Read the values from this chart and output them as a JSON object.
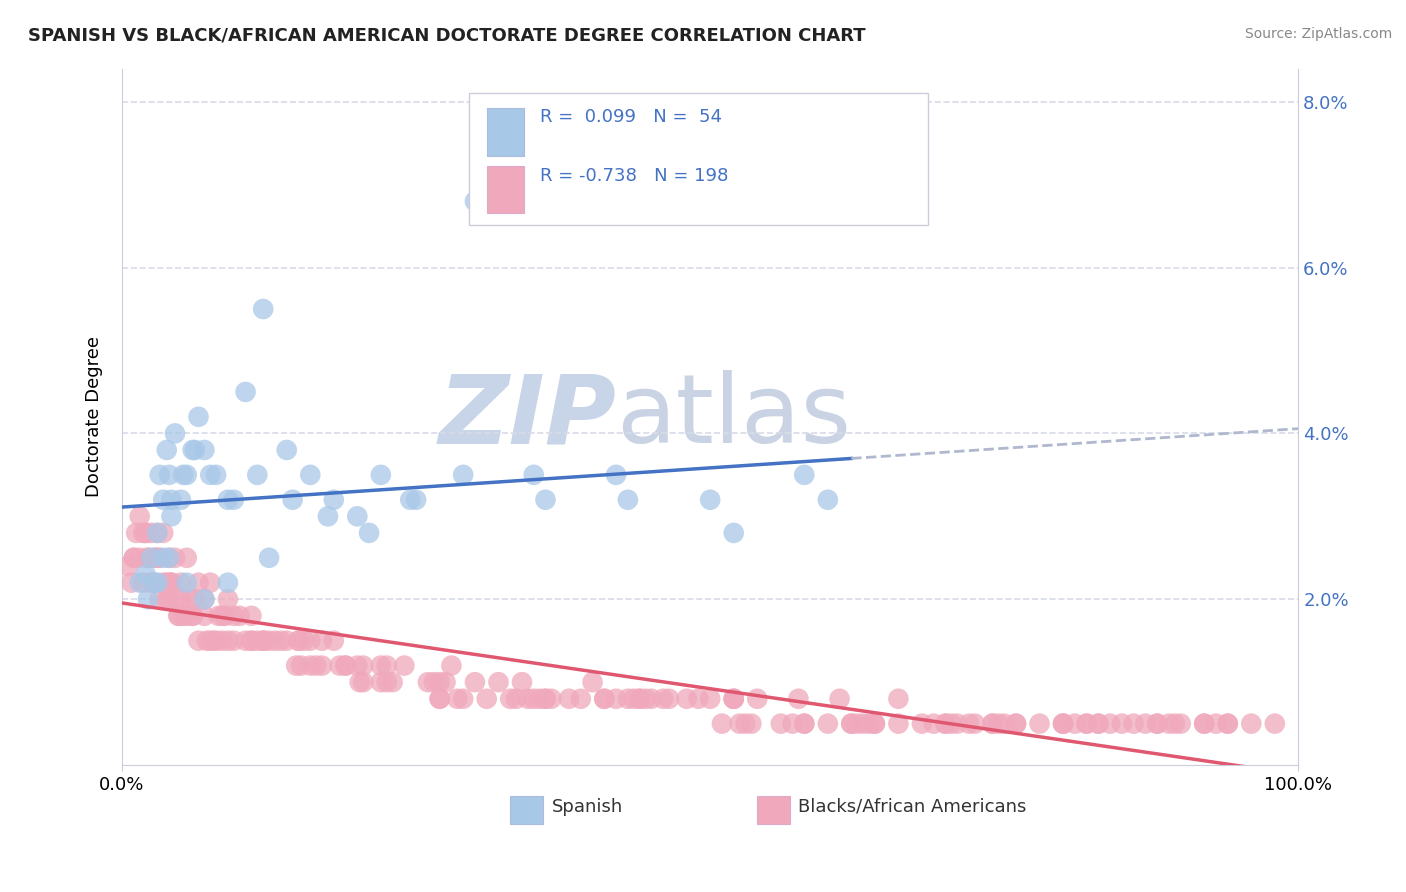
{
  "title": "SPANISH VS BLACK/AFRICAN AMERICAN DOCTORATE DEGREE CORRELATION CHART",
  "source_text": "Source: ZipAtlas.com",
  "ylabel": "Doctorate Degree",
  "xlim": [
    0,
    100
  ],
  "ylim": [
    0,
    8.4
  ],
  "blue_color": "#A8C8E8",
  "pink_color": "#F0A8BC",
  "blue_line_color": "#4472C4",
  "pink_line_color": "#E05870",
  "dashed_line_color": "#B0B8D0",
  "grid_color": "#D8DCE8",
  "watermark_zip": "ZIP",
  "watermark_atlas": "atlas",
  "watermark_color": "#C8D4E8",
  "background_color": "#FFFFFF",
  "legend_text_color": "#4472C4",
  "ytick_color": "#4472C4",
  "blue_solid_end": 62,
  "blue_scatter_x": [
    2.0,
    2.5,
    3.0,
    3.2,
    3.5,
    3.8,
    4.0,
    4.2,
    4.5,
    5.0,
    5.5,
    6.0,
    6.5,
    7.0,
    8.0,
    9.0,
    10.5,
    12.0,
    14.0,
    16.0,
    18.0,
    20.0,
    22.0,
    25.0,
    30.0,
    36.0,
    42.0,
    50.0,
    58.0,
    2.8,
    3.5,
    4.2,
    5.2,
    6.2,
    7.5,
    9.5,
    11.5,
    14.5,
    17.5,
    21.0,
    24.5,
    29.0,
    35.0,
    43.0,
    52.0,
    60.0,
    1.5,
    2.2,
    3.0,
    4.0,
    5.5,
    7.0,
    9.0,
    12.5
  ],
  "blue_scatter_y": [
    2.3,
    2.5,
    2.8,
    3.5,
    3.2,
    3.8,
    3.5,
    3.2,
    4.0,
    3.2,
    3.5,
    3.8,
    4.2,
    3.8,
    3.5,
    3.2,
    4.5,
    5.5,
    3.8,
    3.5,
    3.2,
    3.0,
    3.5,
    3.2,
    6.8,
    3.2,
    3.5,
    3.2,
    3.5,
    2.2,
    2.5,
    3.0,
    3.5,
    3.8,
    3.5,
    3.2,
    3.5,
    3.2,
    3.0,
    2.8,
    3.2,
    3.5,
    3.5,
    3.2,
    2.8,
    3.2,
    2.2,
    2.0,
    2.2,
    2.5,
    2.2,
    2.0,
    2.2,
    2.5
  ],
  "pink_scatter_x": [
    0.5,
    0.8,
    1.0,
    1.2,
    1.5,
    1.8,
    2.0,
    2.2,
    2.5,
    2.8,
    3.0,
    3.2,
    3.5,
    3.8,
    4.0,
    4.2,
    4.5,
    4.8,
    5.0,
    5.5,
    6.0,
    6.5,
    7.0,
    7.5,
    8.0,
    8.5,
    9.0,
    9.5,
    10.0,
    11.0,
    12.0,
    13.0,
    14.0,
    15.0,
    16.0,
    17.0,
    18.0,
    19.0,
    20.0,
    22.0,
    24.0,
    26.0,
    28.0,
    30.0,
    32.0,
    34.0,
    36.0,
    38.0,
    40.0,
    42.0,
    44.0,
    46.0,
    48.0,
    50.0,
    52.0,
    54.0,
    56.0,
    58.0,
    60.0,
    62.0,
    64.0,
    66.0,
    68.0,
    70.0,
    72.0,
    74.0,
    76.0,
    78.0,
    80.0,
    82.0,
    84.0,
    86.0,
    88.0,
    90.0,
    92.0,
    94.0,
    96.0,
    98.0,
    1.5,
    2.5,
    3.5,
    4.5,
    5.5,
    6.5,
    7.5,
    9.0,
    11.0,
    13.5,
    16.0,
    19.0,
    23.0,
    27.0,
    31.0,
    36.0,
    41.0,
    46.5,
    52.0,
    58.0,
    64.0,
    70.0,
    76.0,
    82.0,
    88.0,
    94.0,
    1.0,
    2.0,
    3.0,
    4.0,
    5.0,
    7.0,
    9.5,
    12.0,
    15.0,
    18.5,
    22.5,
    27.5,
    33.0,
    39.0,
    45.0,
    51.0,
    57.0,
    63.0,
    69.0,
    75.0,
    81.0,
    87.0,
    93.0,
    2.2,
    3.8,
    5.8,
    8.2,
    11.5,
    15.5,
    20.5,
    26.5,
    33.5,
    41.0,
    49.0,
    57.5,
    66.0,
    74.5,
    83.0,
    92.0,
    1.8,
    2.8,
    4.2,
    6.2,
    8.8,
    12.5,
    17.0,
    22.5,
    29.0,
    36.5,
    44.5,
    53.0,
    62.0,
    71.0,
    80.0,
    89.0,
    2.5,
    4.0,
    6.0,
    8.5,
    12.0,
    16.5,
    22.0,
    28.5,
    35.5,
    43.5,
    52.0,
    61.0,
    70.5,
    80.0,
    89.5,
    3.2,
    5.2,
    7.8,
    11.0,
    15.2,
    20.5,
    27.0,
    34.5,
    43.0,
    52.5,
    62.5,
    72.5,
    83.0,
    4.8,
    7.2,
    10.5,
    14.8,
    20.2,
    27.0,
    35.0,
    44.0,
    53.5,
    63.5,
    74.0,
    85.0
  ],
  "pink_scatter_y": [
    2.4,
    2.2,
    2.5,
    2.8,
    2.5,
    2.2,
    2.8,
    2.5,
    2.2,
    2.5,
    2.8,
    2.5,
    2.2,
    2.0,
    2.5,
    2.2,
    2.0,
    1.8,
    2.0,
    1.8,
    1.8,
    1.5,
    1.8,
    1.5,
    1.5,
    1.8,
    1.5,
    1.5,
    1.8,
    1.5,
    1.5,
    1.5,
    1.5,
    1.5,
    1.2,
    1.5,
    1.5,
    1.2,
    1.2,
    1.2,
    1.2,
    1.0,
    1.2,
    1.0,
    1.0,
    1.0,
    0.8,
    0.8,
    1.0,
    0.8,
    0.8,
    0.8,
    0.8,
    0.8,
    0.8,
    0.8,
    0.5,
    0.5,
    0.5,
    0.5,
    0.5,
    0.5,
    0.5,
    0.5,
    0.5,
    0.5,
    0.5,
    0.5,
    0.5,
    0.5,
    0.5,
    0.5,
    0.5,
    0.5,
    0.5,
    0.5,
    0.5,
    0.5,
    3.0,
    2.8,
    2.8,
    2.5,
    2.5,
    2.2,
    2.2,
    2.0,
    1.8,
    1.5,
    1.5,
    1.2,
    1.0,
    1.0,
    0.8,
    0.8,
    0.8,
    0.8,
    0.8,
    0.5,
    0.5,
    0.5,
    0.5,
    0.5,
    0.5,
    0.5,
    2.5,
    2.8,
    2.5,
    2.2,
    2.2,
    2.0,
    1.8,
    1.5,
    1.5,
    1.2,
    1.2,
    1.0,
    0.8,
    0.8,
    0.8,
    0.5,
    0.5,
    0.5,
    0.5,
    0.5,
    0.5,
    0.5,
    0.5,
    2.5,
    2.2,
    2.0,
    1.8,
    1.5,
    1.5,
    1.2,
    1.0,
    0.8,
    0.8,
    0.8,
    0.8,
    0.8,
    0.5,
    0.5,
    0.5,
    2.8,
    2.5,
    2.2,
    2.0,
    1.8,
    1.5,
    1.2,
    1.0,
    0.8,
    0.8,
    0.8,
    0.5,
    0.5,
    0.5,
    0.5,
    0.5,
    2.2,
    2.0,
    1.8,
    1.5,
    1.5,
    1.2,
    1.0,
    0.8,
    0.8,
    0.8,
    0.8,
    0.8,
    0.5,
    0.5,
    0.5,
    2.0,
    1.8,
    1.5,
    1.5,
    1.2,
    1.0,
    0.8,
    0.8,
    0.8,
    0.5,
    0.5,
    0.5,
    0.5,
    1.8,
    1.5,
    1.5,
    1.2,
    1.0,
    0.8,
    0.8,
    0.8,
    0.5,
    0.5,
    0.5,
    0.5
  ]
}
